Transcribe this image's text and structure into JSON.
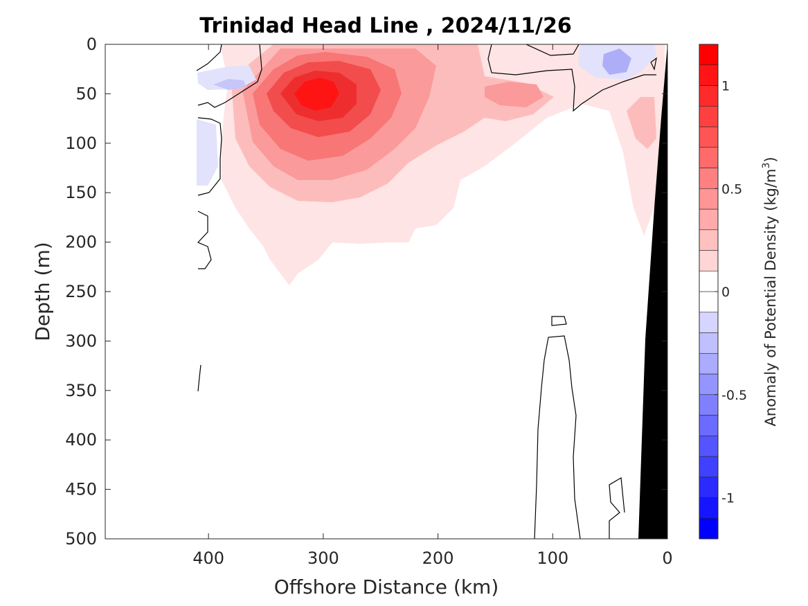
{
  "chart_data": {
    "type": "contour",
    "title": "Trinidad Head Line , 2024/11/26",
    "xlabel": "Offshore Distance (km)",
    "ylabel": "Depth (m)",
    "colorbar_label": "Anomaly of Potential Density (kg/m",
    "colorbar_label_exp": "3",
    "colorbar_label_end": ")",
    "xlim": [
      490,
      0
    ],
    "ylim": [
      0,
      500
    ],
    "x_reversed": true,
    "y_reversed": true,
    "x_ticks": [
      400,
      300,
      200,
      100,
      0
    ],
    "y_ticks": [
      0,
      50,
      100,
      150,
      200,
      250,
      300,
      350,
      400,
      450,
      500
    ],
    "clim": [
      -1.2,
      1.2
    ],
    "colorbar_ticks": [
      {
        "value": 1,
        "label": "1"
      },
      {
        "value": 0.5,
        "label": "0.5"
      },
      {
        "value": 0,
        "label": "0"
      },
      {
        "value": -0.5,
        "label": "-0.5"
      },
      {
        "value": -1,
        "label": "-1"
      }
    ],
    "levels": 24,
    "zero_contour": true,
    "positive_features": [
      {
        "name": "core",
        "x": 305,
        "y": 52,
        "peak": 1.1
      },
      {
        "name": "shoulder",
        "x": 255,
        "y": 62,
        "peak": 0.55
      },
      {
        "name": "surface lobe",
        "x": 210,
        "y": 30,
        "peak": 0.3
      },
      {
        "name": "mid lobe",
        "x": 130,
        "y": 50,
        "peak": 0.3
      },
      {
        "name": "nearshore",
        "x": 20,
        "y": 90,
        "peak": 0.25
      }
    ],
    "negative_features": [
      {
        "name": "offshore surface",
        "x": 380,
        "y": 40,
        "peak": -0.2
      },
      {
        "name": "nearshore surface",
        "x": 45,
        "y": 20,
        "peak": -0.3
      }
    ],
    "colors": {
      "positive_max": "#ff0000",
      "negative_max": "#0000ff",
      "bathymetry": "#000000",
      "zero_line": "#000000"
    }
  }
}
